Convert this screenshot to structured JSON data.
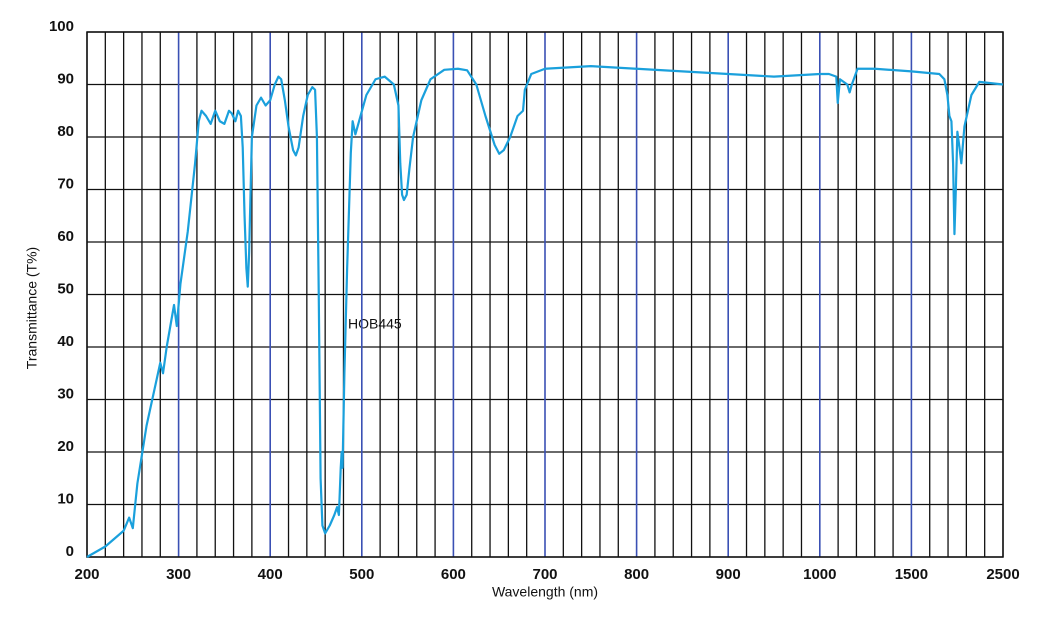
{
  "chart_data": {
    "type": "line",
    "x_label": "Wavelength (nm)",
    "y_label": "Transmittance (T%)",
    "annotation": "HOB445",
    "xlim": [
      200,
      2500
    ],
    "xticks": [
      200,
      300,
      400,
      500,
      600,
      700,
      800,
      900,
      1000,
      1500,
      2500
    ],
    "ylim": [
      0,
      100
    ],
    "yticks": [
      0,
      10,
      20,
      30,
      40,
      50,
      60,
      70,
      80,
      90,
      100
    ],
    "grid": true,
    "series": [
      {
        "name": "HOB445",
        "color": "#1aa0dc",
        "x": [
          200,
          220,
          240,
          246,
          250,
          255,
          265,
          275,
          280,
          283,
          287,
          295,
          298,
          302,
          310,
          318,
          322,
          325,
          330,
          335,
          340,
          345,
          350,
          355,
          358,
          362,
          365,
          368,
          370,
          372,
          374,
          375.5,
          377,
          380,
          385,
          390,
          395,
          400,
          405,
          409,
          412,
          416,
          420,
          425,
          428,
          431,
          436,
          441,
          446,
          449,
          451,
          453,
          455,
          457,
          460,
          465,
          470,
          473,
          475,
          477,
          478,
          479,
          481,
          484,
          488,
          490,
          493,
          497,
          505,
          515,
          525,
          535,
          540,
          542,
          544,
          546,
          549,
          552,
          556,
          565,
          575,
          590,
          605,
          615,
          625,
          635,
          645,
          650,
          655,
          662,
          670,
          676,
          678,
          685,
          700,
          750,
          800,
          900,
          950,
          1000,
          1050,
          1090,
          1098,
          1110,
          1150,
          1163,
          1175,
          1206,
          1300,
          1500,
          1805,
          1860,
          1893,
          1915,
          1937,
          1955,
          1970,
          1985,
          2002,
          2025,
          2045,
          2079,
          2155,
          2242,
          2500
        ],
        "values": [
          0,
          2,
          5,
          7.5,
          5.5,
          14,
          25,
          33,
          37,
          35,
          40,
          48,
          44,
          52,
          62,
          75,
          83,
          85,
          84,
          82.5,
          85,
          83,
          82.5,
          85,
          84.5,
          83,
          85,
          84,
          78,
          65,
          55,
          51.5,
          58,
          80,
          86,
          87.5,
          86,
          87,
          90,
          91.5,
          91,
          87,
          82,
          77.5,
          76.5,
          78,
          84,
          88,
          89.5,
          89,
          80,
          50,
          15,
          6,
          4.5,
          6,
          8,
          9.5,
          8,
          17,
          20,
          17,
          35,
          55,
          77,
          83,
          80.5,
          83,
          88,
          91,
          91.5,
          90,
          86,
          75,
          69,
          68,
          69,
          74,
          80,
          87,
          91,
          92.8,
          93,
          92.7,
          90,
          84,
          78.5,
          76.8,
          77.5,
          80,
          84,
          85,
          89,
          92,
          93,
          93.5,
          93,
          92,
          91.5,
          92,
          92,
          91.5,
          86.5,
          91,
          90,
          88.5,
          90,
          93,
          93,
          92.5,
          92,
          91,
          88,
          84,
          83,
          75,
          61.5,
          70,
          81,
          78,
          75,
          82,
          88,
          90.5,
          90
        ]
      }
    ]
  }
}
